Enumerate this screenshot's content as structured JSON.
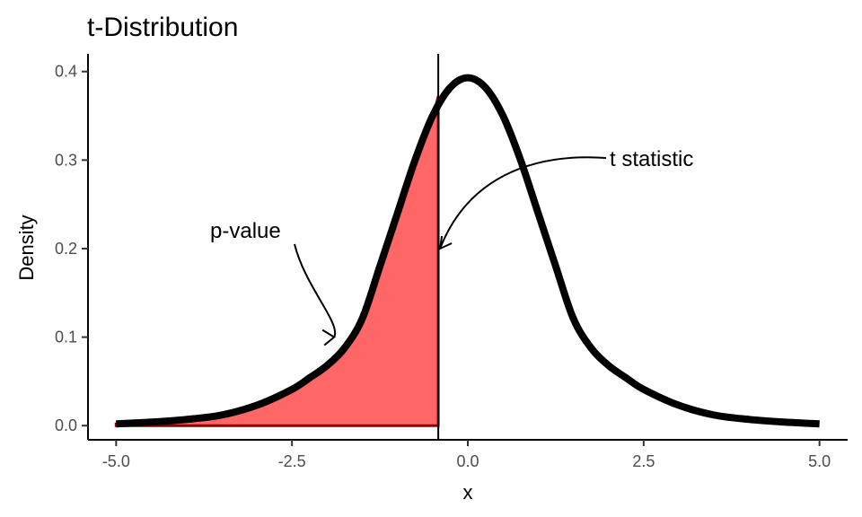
{
  "chart_data": {
    "type": "area",
    "title": "t-Distribution",
    "xlabel": "x",
    "ylabel": "Density",
    "xlim": [
      -5.0,
      5.0
    ],
    "ylim": [
      0.0,
      0.4
    ],
    "x_ticks": [
      -5.0,
      -2.5,
      0.0,
      2.5,
      5.0
    ],
    "x_tick_labels": [
      "-5.0",
      "-2.5",
      "0.0",
      "2.5",
      "5.0"
    ],
    "y_ticks": [
      0.0,
      0.1,
      0.2,
      0.3,
      0.4
    ],
    "y_tick_labels": [
      "0.0",
      "0.1",
      "0.2",
      "0.3",
      "0.4"
    ],
    "grid": false,
    "legend": "none",
    "series": [
      {
        "x": [
          -5.0,
          -4.5,
          -4.0,
          -3.5,
          -3.0,
          -2.5,
          -2.25,
          -2.0,
          -1.75,
          -1.5,
          -1.25,
          -1.0,
          -0.75,
          -0.5,
          -0.25,
          0.0,
          0.25,
          0.5,
          0.75,
          1.0,
          1.25,
          1.5,
          1.75,
          2.0,
          2.25,
          2.5,
          3.0,
          3.5,
          4.0,
          4.5,
          5.0
        ],
        "y": [
          0.002,
          0.004,
          0.007,
          0.012,
          0.023,
          0.041,
          0.054,
          0.068,
          0.088,
          0.121,
          0.18,
          0.24,
          0.3,
          0.35,
          0.382,
          0.393,
          0.382,
          0.35,
          0.3,
          0.24,
          0.18,
          0.121,
          0.088,
          0.068,
          0.054,
          0.041,
          0.023,
          0.012,
          0.007,
          0.004,
          0.002
        ]
      }
    ],
    "shaded_region": {
      "from": -5.0,
      "to": -0.42,
      "color": "#ff6666",
      "label": "p-value"
    },
    "t_statistic": -0.42,
    "annotations": [
      {
        "text": "p-value",
        "target_x": -1.9,
        "target_y": 0.1
      },
      {
        "text": "t statistic",
        "target_x": -0.42,
        "target_y": 0.2
      }
    ],
    "colors": {
      "curve": "#000000",
      "fill": "#ff6666",
      "fill_edge": "#8b0000",
      "axis": "#000000"
    }
  }
}
